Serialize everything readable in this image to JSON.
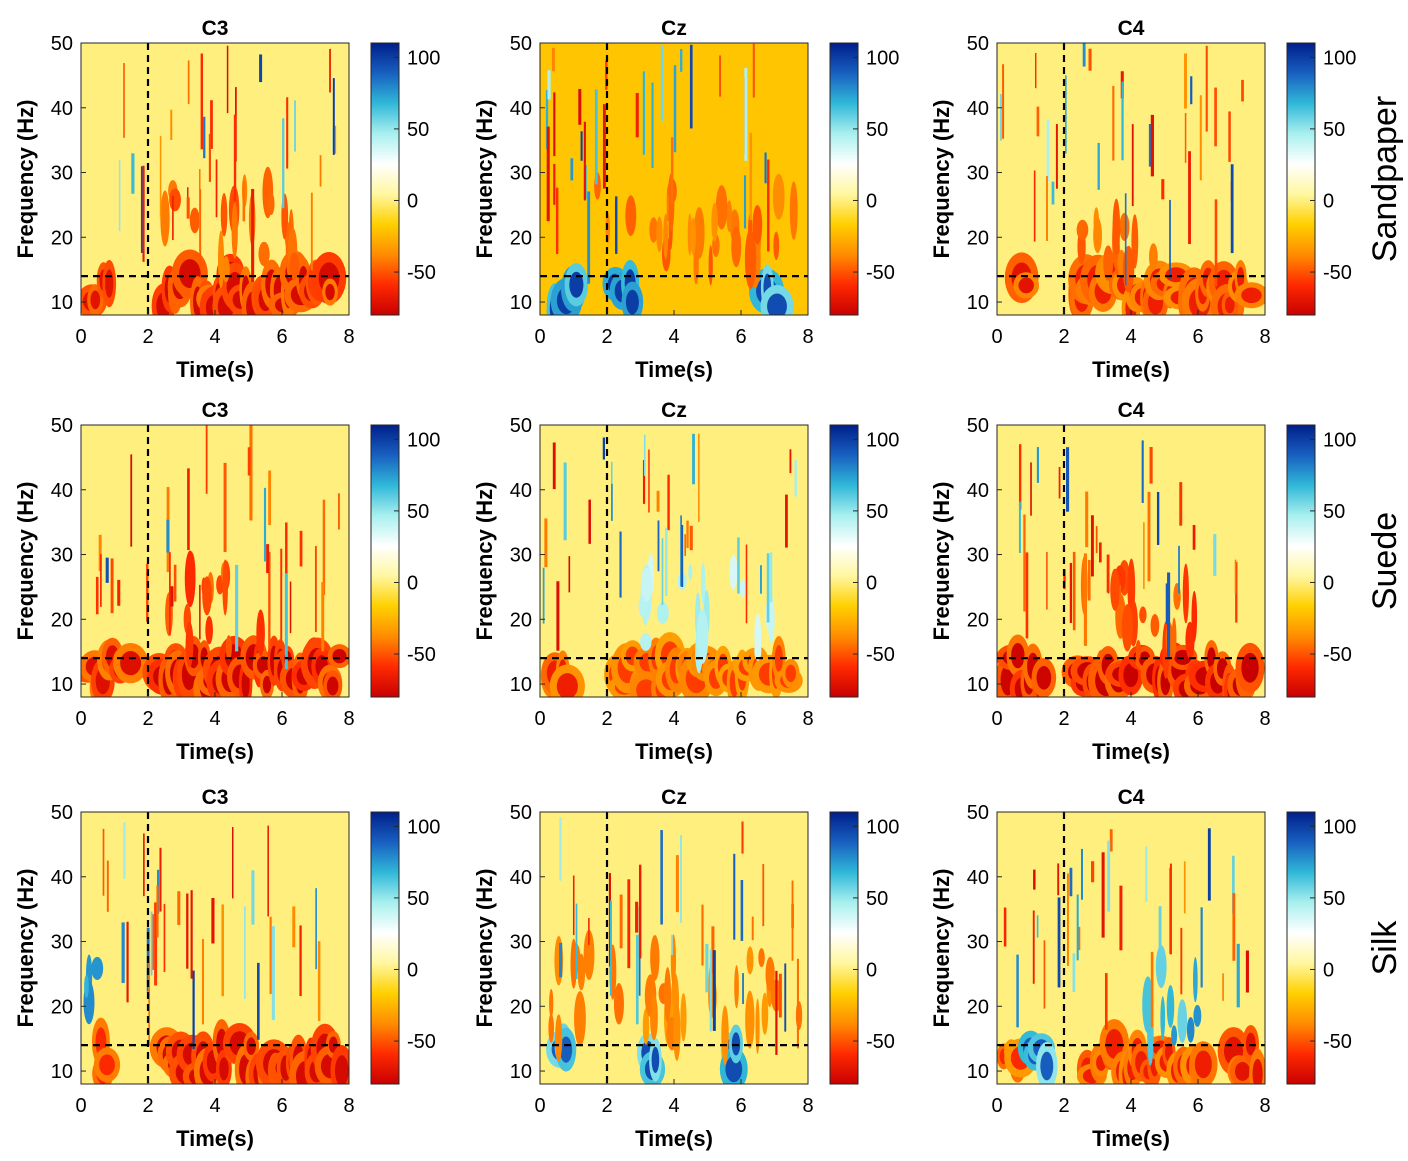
{
  "figure": {
    "rows": [
      "Sandpaper",
      "Suede",
      "Silk"
    ],
    "columns": [
      "C3",
      "Cz",
      "C4"
    ],
    "colorbar_ticks": [
      100,
      50,
      0,
      -50
    ],
    "colorbar_range": [
      -80,
      110
    ],
    "colormap_stops": [
      "#c80000",
      "#ff2a00",
      "#ff8c00",
      "#ffd000",
      "#fff7a0",
      "#ffffff",
      "#a8f0ee",
      "#30b8d8",
      "#1860c0",
      "#001f8a"
    ]
  },
  "chart_data": [
    {
      "type": "heatmap",
      "row": "Sandpaper",
      "title": "C3",
      "xlabel": "Time(s)",
      "ylabel": "Frequency (Hz)",
      "xlim": [
        0,
        8
      ],
      "ylim": [
        8,
        50
      ],
      "x_ticks": [
        0,
        2,
        4,
        6,
        8
      ],
      "y_ticks": [
        10,
        20,
        30,
        40,
        50
      ],
      "event_time": 2,
      "band_freq": 14,
      "dominant": "desync",
      "alpha": [
        {
          "t0": 0.2,
          "t1": 0.9,
          "value": -70
        },
        {
          "t0": 2.4,
          "t1": 7.6,
          "value": -75
        }
      ],
      "beta": [
        {
          "t0": 2.5,
          "t1": 6.5,
          "value": -55
        }
      ],
      "background": 0
    },
    {
      "type": "heatmap",
      "row": "Sandpaper",
      "title": "Cz",
      "xlabel": "Time(s)",
      "ylabel": "Frequency (Hz)",
      "xlim": [
        0,
        8
      ],
      "ylim": [
        8,
        50
      ],
      "x_ticks": [
        0,
        2,
        4,
        6,
        8
      ],
      "y_ticks": [
        10,
        20,
        30,
        40,
        50
      ],
      "event_time": 2,
      "band_freq": 14,
      "dominant": "mixed",
      "alpha": [
        {
          "t0": 0.3,
          "t1": 1.2,
          "value": 100
        },
        {
          "t0": 2.2,
          "t1": 2.9,
          "value": 100
        },
        {
          "t0": 6.6,
          "t1": 7.1,
          "value": 95
        }
      ],
      "beta": [
        {
          "t0": 1.4,
          "t1": 7.6,
          "value": -50
        }
      ],
      "background": -20
    },
    {
      "type": "heatmap",
      "row": "Sandpaper",
      "title": "C4",
      "xlabel": "Time(s)",
      "ylabel": "Frequency (Hz)",
      "xlim": [
        0,
        8
      ],
      "ylim": [
        8,
        50
      ],
      "x_ticks": [
        0,
        2,
        4,
        6,
        8
      ],
      "y_ticks": [
        10,
        20,
        30,
        40,
        50
      ],
      "event_time": 2,
      "band_freq": 14,
      "dominant": "desync",
      "alpha": [
        {
          "t0": 0.6,
          "t1": 0.9,
          "value": -70
        },
        {
          "t0": 2.3,
          "t1": 7.6,
          "value": -65
        }
      ],
      "beta": [
        {
          "t0": 2.4,
          "t1": 5.0,
          "value": -50
        }
      ],
      "background": 0
    },
    {
      "type": "heatmap",
      "row": "Suede",
      "title": "C3",
      "xlabel": "Time(s)",
      "ylabel": "Frequency (Hz)",
      "xlim": [
        0,
        8
      ],
      "ylim": [
        8,
        50
      ],
      "x_ticks": [
        0,
        2,
        4,
        6,
        8
      ],
      "y_ticks": [
        10,
        20,
        30,
        40,
        50
      ],
      "event_time": 2,
      "band_freq": 14,
      "dominant": "desync",
      "alpha": [
        {
          "t0": 0.1,
          "t1": 1.6,
          "value": -72
        },
        {
          "t0": 2.2,
          "t1": 7.8,
          "value": -78
        }
      ],
      "beta": [
        {
          "t0": 2.5,
          "t1": 5.5,
          "value": -60
        }
      ],
      "background": 0
    },
    {
      "type": "heatmap",
      "row": "Suede",
      "title": "Cz",
      "xlabel": "Time(s)",
      "ylabel": "Frequency (Hz)",
      "xlim": [
        0,
        8
      ],
      "ylim": [
        8,
        50
      ],
      "x_ticks": [
        0,
        2,
        4,
        6,
        8
      ],
      "y_ticks": [
        10,
        20,
        30,
        40,
        50
      ],
      "event_time": 2,
      "band_freq": 14,
      "dominant": "mixed",
      "alpha": [
        {
          "t0": 0.2,
          "t1": 0.9,
          "value": -65
        },
        {
          "t0": 2.2,
          "t1": 7.6,
          "value": -55
        }
      ],
      "beta": [
        {
          "t0": 3.0,
          "t1": 7.0,
          "value": 50
        }
      ],
      "background": 0
    },
    {
      "type": "heatmap",
      "row": "Suede",
      "title": "C4",
      "xlabel": "Time(s)",
      "ylabel": "Frequency (Hz)",
      "xlim": [
        0,
        8
      ],
      "ylim": [
        8,
        50
      ],
      "x_ticks": [
        0,
        2,
        4,
        6,
        8
      ],
      "y_ticks": [
        10,
        20,
        30,
        40,
        50
      ],
      "event_time": 2,
      "band_freq": 14,
      "dominant": "desync",
      "alpha": [
        {
          "t0": 0.0,
          "t1": 1.5,
          "value": -78
        },
        {
          "t0": 2.3,
          "t1": 7.7,
          "value": -80
        }
      ],
      "beta": [
        {
          "t0": 2.5,
          "t1": 6.0,
          "value": -60
        }
      ],
      "background": 0
    },
    {
      "type": "heatmap",
      "row": "Silk",
      "title": "C3",
      "xlabel": "Time(s)",
      "ylabel": "Frequency (Hz)",
      "xlim": [
        0,
        8
      ],
      "ylim": [
        8,
        50
      ],
      "x_ticks": [
        0,
        2,
        4,
        6,
        8
      ],
      "y_ticks": [
        10,
        20,
        30,
        40,
        50
      ],
      "event_time": 2,
      "band_freq": 14,
      "dominant": "desync",
      "alpha": [
        {
          "t0": 0.5,
          "t1": 0.8,
          "value": -60
        },
        {
          "t0": 2.4,
          "t1": 7.8,
          "value": -75
        }
      ],
      "beta": [
        {
          "t0": 0.1,
          "t1": 0.9,
          "value": 90
        }
      ],
      "background": 0
    },
    {
      "type": "heatmap",
      "row": "Silk",
      "title": "Cz",
      "xlabel": "Time(s)",
      "ylabel": "Frequency (Hz)",
      "xlim": [
        0,
        8
      ],
      "ylim": [
        8,
        50
      ],
      "x_ticks": [
        0,
        2,
        4,
        6,
        8
      ],
      "y_ticks": [
        10,
        20,
        30,
        40,
        50
      ],
      "event_time": 2,
      "band_freq": 14,
      "dominant": "mixed",
      "alpha": [
        {
          "t0": 0.5,
          "t1": 0.8,
          "value": 90
        },
        {
          "t0": 3.2,
          "t1": 3.5,
          "value": 95
        },
        {
          "t0": 5.6,
          "t1": 5.9,
          "value": 95
        }
      ],
      "beta": [
        {
          "t0": 0.2,
          "t1": 7.8,
          "value": -45
        }
      ],
      "background": 0
    },
    {
      "type": "heatmap",
      "row": "Silk",
      "title": "C4",
      "xlabel": "Time(s)",
      "ylabel": "Frequency (Hz)",
      "xlim": [
        0,
        8
      ],
      "ylim": [
        8,
        50
      ],
      "x_ticks": [
        0,
        2,
        4,
        6,
        8
      ],
      "y_ticks": [
        10,
        20,
        30,
        40,
        50
      ],
      "event_time": 2,
      "band_freq": 14,
      "dominant": "mixed",
      "alpha": [
        {
          "t0": 0.2,
          "t1": 0.8,
          "value": -60
        },
        {
          "t0": 0.9,
          "t1": 1.6,
          "value": 90
        },
        {
          "t0": 2.6,
          "t1": 6.3,
          "value": -65
        },
        {
          "t0": 7.0,
          "t1": 7.8,
          "value": -70
        }
      ],
      "beta": [
        {
          "t0": 4.5,
          "t1": 6.7,
          "value": 80
        }
      ],
      "background": 0
    }
  ]
}
